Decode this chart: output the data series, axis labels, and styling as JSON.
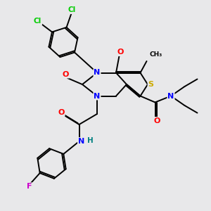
{
  "background_color": "#e8e8ea",
  "atom_colors": {
    "C": "#000000",
    "N": "#0000ff",
    "O": "#ff0000",
    "S": "#ccaa00",
    "Cl": "#00cc00",
    "F": "#cc00cc",
    "H": "#008080"
  },
  "figsize": [
    3.0,
    3.0
  ],
  "dpi": 100,
  "xlim": [
    0,
    10
  ],
  "ylim": [
    0,
    10
  ]
}
